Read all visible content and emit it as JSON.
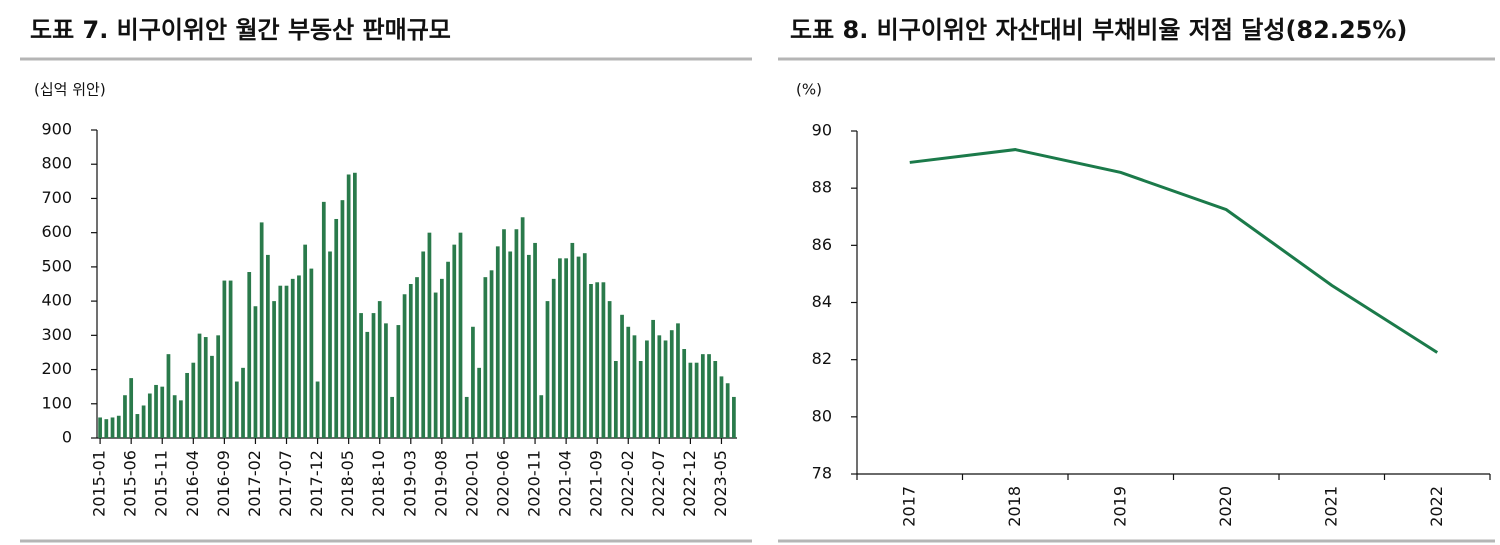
{
  "chart_data": [
    {
      "type": "bar",
      "title": "도표 7. 비구이위안 월간 부동산 판매규모",
      "unit_label": "(십억 위안)",
      "color": "#2a7a4b",
      "categories": [
        "2015-01",
        null,
        null,
        null,
        null,
        "2015-06",
        null,
        null,
        null,
        null,
        "2015-11",
        null,
        null,
        null,
        null,
        "2016-04",
        null,
        null,
        null,
        null,
        "2016-09",
        null,
        null,
        null,
        null,
        "2017-02",
        null,
        null,
        null,
        null,
        "2017-07",
        null,
        null,
        null,
        null,
        "2017-12",
        null,
        null,
        null,
        null,
        "2018-05",
        null,
        null,
        null,
        null,
        "2018-10",
        null,
        null,
        null,
        null,
        "2019-03",
        null,
        null,
        null,
        null,
        "2019-08",
        null,
        null,
        null,
        null,
        "2020-01",
        null,
        null,
        null,
        null,
        "2020-06",
        null,
        null,
        null,
        null,
        "2020-11",
        null,
        null,
        null,
        null,
        "2021-04",
        null,
        null,
        null,
        null,
        "2021-09",
        null,
        null,
        null,
        null,
        "2022-02",
        null,
        null,
        null,
        null,
        "2022-07",
        null,
        null,
        null,
        null,
        "2022-12",
        null,
        null,
        null,
        null,
        "2023-05",
        null,
        null
      ],
      "values": [
        60,
        55,
        60,
        65,
        125,
        175,
        70,
        95,
        130,
        155,
        150,
        245,
        125,
        110,
        190,
        220,
        305,
        295,
        240,
        300,
        460,
        460,
        165,
        205,
        485,
        385,
        630,
        535,
        400,
        445,
        445,
        465,
        475,
        565,
        495,
        165,
        690,
        545,
        640,
        695,
        770,
        775,
        365,
        310,
        365,
        400,
        335,
        120,
        330,
        420,
        450,
        470,
        545,
        600,
        425,
        465,
        515,
        565,
        600,
        120,
        325,
        205,
        470,
        490,
        560,
        610,
        545,
        610,
        645,
        535,
        570,
        125,
        400,
        465,
        525,
        525,
        570,
        530,
        540,
        450,
        455,
        455,
        400,
        225,
        360,
        325,
        300,
        225,
        285,
        345,
        300,
        285,
        315,
        335,
        260,
        220,
        220,
        245,
        245,
        225,
        180,
        160,
        120
      ],
      "ylim": [
        0,
        900
      ],
      "yticks": [
        0,
        100,
        200,
        300,
        400,
        500,
        600,
        700,
        800,
        900
      ]
    },
    {
      "type": "line",
      "title": "도표 8. 비구이위안 자산대비 부채비율 저점 달성(82.25%)",
      "unit_label": "(%)",
      "color": "#1b7a4a",
      "categories": [
        "2017",
        "2018",
        "2019",
        "2020",
        "2021",
        "2022"
      ],
      "values": [
        88.9,
        89.35,
        88.55,
        87.25,
        84.6,
        82.25
      ],
      "ylim": [
        78,
        90
      ],
      "yticks": [
        78,
        80,
        82,
        84,
        86,
        88,
        90
      ]
    }
  ]
}
